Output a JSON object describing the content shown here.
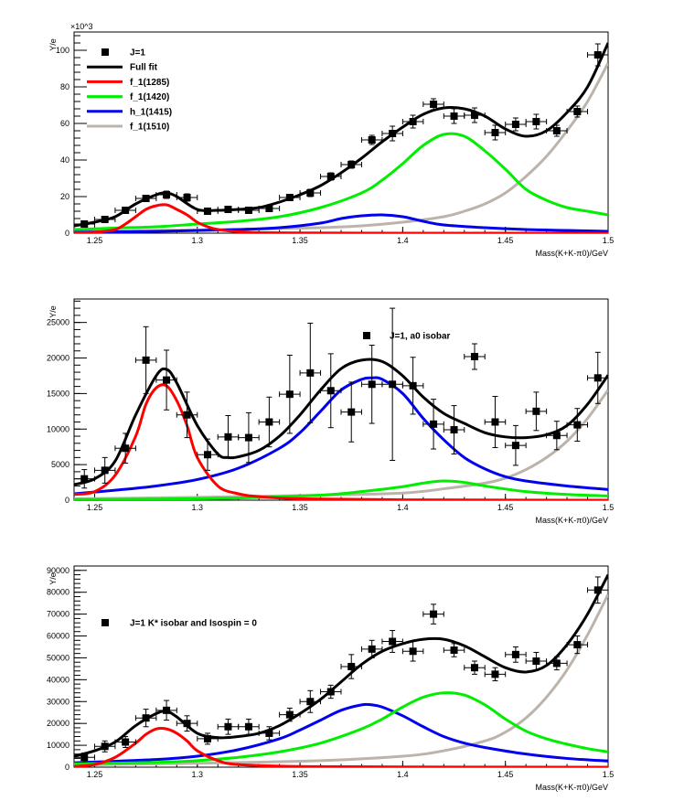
{
  "chart_data": [
    {
      "type": "scatter",
      "title": "",
      "xlabel": "Mass(K+K-π0)/GeV",
      "ylabel": "Y/e",
      "y_exponent_label": "×10^3",
      "xlim": [
        1.24,
        1.5
      ],
      "ylim": [
        0,
        110
      ],
      "x_ticks": [
        "1.25",
        "1.3",
        "1.35",
        "1.4",
        "1.45",
        "1.5"
      ],
      "y_ticks": [
        "0",
        "20",
        "40",
        "60",
        "80",
        "100"
      ],
      "legend_placement": "top-left",
      "legend": [
        {
          "label": "J=1",
          "kind": "marker",
          "color": "#000000"
        },
        {
          "label": "Full fit",
          "kind": "line",
          "color": "#000000"
        },
        {
          "label": "f_1(1285)",
          "kind": "line",
          "color": "#ff0000"
        },
        {
          "label": "f_1(1420)",
          "kind": "line",
          "color": "#00ee00"
        },
        {
          "label": "h_1(1415)",
          "kind": "line",
          "color": "#0000ee"
        },
        {
          "label": "f_1(1510)",
          "kind": "line",
          "color": "#bcb4ab"
        }
      ],
      "points": {
        "x": [
          1.245,
          1.255,
          1.265,
          1.275,
          1.285,
          1.295,
          1.305,
          1.315,
          1.325,
          1.335,
          1.345,
          1.355,
          1.365,
          1.375,
          1.385,
          1.395,
          1.405,
          1.415,
          1.425,
          1.435,
          1.445,
          1.455,
          1.465,
          1.475,
          1.485,
          1.495
        ],
        "y": [
          5,
          7.5,
          12.5,
          19,
          21,
          19.5,
          12,
          13,
          12.5,
          13.5,
          19.5,
          22,
          31,
          37.5,
          51,
          54.5,
          61,
          70.5,
          64,
          64.5,
          55,
          59.5,
          61,
          56,
          66.5,
          97.5
        ],
        "yerr": [
          1,
          1,
          1.5,
          1.5,
          2,
          2,
          1,
          1.5,
          1.5,
          1.5,
          1.5,
          2,
          2,
          2,
          2.5,
          4,
          3.5,
          3,
          4,
          4,
          4,
          3.5,
          4,
          3,
          3,
          6
        ]
      },
      "series": [
        {
          "name": "Full fit",
          "color": "#000000",
          "x": [
            1.24,
            1.25,
            1.26,
            1.27,
            1.28,
            1.285,
            1.29,
            1.3,
            1.31,
            1.32,
            1.33,
            1.34,
            1.35,
            1.36,
            1.37,
            1.38,
            1.39,
            1.4,
            1.41,
            1.42,
            1.43,
            1.44,
            1.45,
            1.46,
            1.47,
            1.48,
            1.49,
            1.5
          ],
          "y": [
            4,
            6,
            9,
            16,
            21,
            22,
            20,
            13,
            12.5,
            13,
            14,
            17,
            21,
            26,
            33,
            41,
            50,
            58,
            65,
            68.5,
            68,
            64,
            57,
            53,
            56,
            66,
            80,
            104
          ]
        },
        {
          "name": "f_1(1285)",
          "color": "#ff0000",
          "x": [
            1.24,
            1.25,
            1.26,
            1.265,
            1.27,
            1.275,
            1.28,
            1.285,
            1.29,
            1.295,
            1.3,
            1.305,
            1.31,
            1.32,
            1.33,
            1.35,
            1.4,
            1.5
          ],
          "y": [
            0.2,
            0.5,
            2,
            5,
            9,
            13,
            15,
            15.5,
            13,
            10,
            6,
            3.5,
            2,
            0.8,
            0.3,
            0.1,
            0,
            0
          ]
        },
        {
          "name": "f_1(1420)",
          "color": "#00ee00",
          "x": [
            1.24,
            1.26,
            1.28,
            1.3,
            1.32,
            1.34,
            1.36,
            1.38,
            1.39,
            1.4,
            1.41,
            1.42,
            1.43,
            1.44,
            1.45,
            1.46,
            1.47,
            1.48,
            1.49,
            1.5
          ],
          "y": [
            2,
            2.8,
            3.5,
            5,
            6.5,
            9,
            14,
            22,
            29,
            38,
            48,
            54,
            53,
            45,
            35,
            24,
            18,
            14,
            12,
            10
          ]
        },
        {
          "name": "h_1(1415)",
          "color": "#0000ee",
          "x": [
            1.24,
            1.28,
            1.32,
            1.34,
            1.36,
            1.37,
            1.38,
            1.39,
            1.4,
            1.41,
            1.42,
            1.44,
            1.46,
            1.48,
            1.5
          ],
          "y": [
            0.5,
            1,
            2,
            3,
            5.5,
            8,
            9.5,
            10,
            9,
            6.5,
            4.5,
            3,
            2,
            1.5,
            1
          ]
        },
        {
          "name": "f_1(1510)",
          "color": "#bcb4ab",
          "x": [
            1.24,
            1.28,
            1.32,
            1.36,
            1.38,
            1.4,
            1.42,
            1.43,
            1.44,
            1.45,
            1.46,
            1.47,
            1.48,
            1.49,
            1.5
          ],
          "y": [
            1,
            1.5,
            2,
            3,
            4,
            6,
            9,
            12,
            16,
            22,
            31,
            42,
            56,
            72,
            93
          ]
        }
      ]
    },
    {
      "type": "scatter",
      "title": "",
      "xlabel": "Mass(K+K-π0)/GeV",
      "ylabel": "Y/e",
      "xlim": [
        1.24,
        1.5
      ],
      "ylim": [
        0,
        28300
      ],
      "x_ticks": [
        "1.25",
        "1.3",
        "1.35",
        "1.4",
        "1.45",
        "1.5"
      ],
      "y_ticks": [
        "0",
        "5000",
        "10000",
        "15000",
        "20000",
        "25000"
      ],
      "legend_placement": "top-center",
      "legend": [
        {
          "label": "J=1, a0 isobar",
          "kind": "marker",
          "color": "#000000"
        }
      ],
      "points": {
        "x": [
          1.245,
          1.255,
          1.265,
          1.275,
          1.285,
          1.295,
          1.305,
          1.315,
          1.325,
          1.335,
          1.345,
          1.355,
          1.365,
          1.375,
          1.385,
          1.395,
          1.405,
          1.415,
          1.425,
          1.435,
          1.445,
          1.455,
          1.465,
          1.475,
          1.485,
          1.495
        ],
        "y": [
          3000,
          4200,
          7300,
          19700,
          16900,
          12000,
          6400,
          8900,
          8800,
          11000,
          14900,
          17900,
          15400,
          12400,
          16300,
          16300,
          16100,
          10700,
          9900,
          20200,
          11000,
          7700,
          12500,
          9100,
          10600,
          17200
        ],
        "yerr": [
          1300,
          1800,
          2100,
          4700,
          4200,
          3200,
          2200,
          3000,
          3500,
          3500,
          5500,
          7000,
          5200,
          4200,
          5500,
          10700,
          4000,
          3500,
          3400,
          1800,
          3600,
          2800,
          2700,
          2000,
          2300,
          3600
        ]
      },
      "series": [
        {
          "name": "Full fit",
          "color": "#000000",
          "x": [
            1.24,
            1.25,
            1.26,
            1.27,
            1.28,
            1.285,
            1.29,
            1.3,
            1.31,
            1.315,
            1.32,
            1.33,
            1.34,
            1.35,
            1.36,
            1.37,
            1.38,
            1.39,
            1.4,
            1.41,
            1.42,
            1.43,
            1.44,
            1.45,
            1.46,
            1.47,
            1.48,
            1.49,
            1.5
          ],
          "y": [
            2200,
            3000,
            5500,
            12000,
            17500,
            18400,
            16500,
            10500,
            6500,
            6000,
            6100,
            7000,
            9000,
            12000,
            15500,
            18500,
            19700,
            19500,
            17500,
            14500,
            12200,
            10800,
            9500,
            8900,
            8800,
            9200,
            10500,
            13500,
            17600
          ]
        },
        {
          "name": "f_1(1285)",
          "color": "#ff0000",
          "x": [
            1.24,
            1.25,
            1.26,
            1.27,
            1.275,
            1.28,
            1.285,
            1.29,
            1.295,
            1.3,
            1.31,
            1.32,
            1.33,
            1.35,
            1.4,
            1.5
          ],
          "y": [
            800,
            1200,
            3500,
            9000,
            13500,
            15800,
            16100,
            14000,
            10500,
            6000,
            2000,
            900,
            500,
            200,
            50,
            0
          ]
        },
        {
          "name": "f_1(1420)",
          "color": "#00ee00",
          "x": [
            1.24,
            1.28,
            1.32,
            1.36,
            1.38,
            1.4,
            1.41,
            1.42,
            1.43,
            1.44,
            1.46,
            1.48,
            1.5
          ],
          "y": [
            100,
            150,
            300,
            700,
            1200,
            1900,
            2400,
            2700,
            2500,
            2000,
            1200,
            800,
            600
          ]
        },
        {
          "name": "h_1(1415)",
          "color": "#0000ee",
          "x": [
            1.24,
            1.26,
            1.28,
            1.3,
            1.32,
            1.34,
            1.35,
            1.36,
            1.37,
            1.38,
            1.385,
            1.39,
            1.4,
            1.41,
            1.42,
            1.43,
            1.44,
            1.45,
            1.46,
            1.48,
            1.5
          ],
          "y": [
            900,
            1400,
            2000,
            2900,
            4500,
            7300,
            9500,
            12500,
            15500,
            17000,
            17200,
            17000,
            15000,
            11500,
            8500,
            6000,
            4400,
            3300,
            2700,
            2000,
            1500
          ]
        },
        {
          "name": "f_1(1510)",
          "color": "#bcb4ab",
          "x": [
            1.24,
            1.3,
            1.36,
            1.4,
            1.42,
            1.44,
            1.45,
            1.46,
            1.47,
            1.48,
            1.49,
            1.5
          ],
          "y": [
            200,
            400,
            700,
            1000,
            1600,
            2400,
            3100,
            4300,
            6000,
            8300,
            11500,
            15500
          ]
        }
      ]
    },
    {
      "type": "scatter",
      "title": "",
      "xlabel": "Mass(K+K-π0)/GeV",
      "ylabel": "Y/e",
      "xlim": [
        1.24,
        1.5
      ],
      "ylim": [
        0,
        92000
      ],
      "x_ticks": [
        "1.25",
        "1.3",
        "1.35",
        "1.4",
        "1.45",
        "1.5"
      ],
      "y_ticks": [
        "0",
        "10000",
        "20000",
        "30000",
        "40000",
        "50000",
        "60000",
        "70000",
        "80000",
        "90000"
      ],
      "legend_placement": "top-left",
      "legend": [
        {
          "label": "J=1 K* isobar and Isospin = 0",
          "kind": "marker",
          "color": "#000000"
        }
      ],
      "points": {
        "x": [
          1.245,
          1.255,
          1.265,
          1.275,
          1.285,
          1.295,
          1.305,
          1.315,
          1.325,
          1.335,
          1.345,
          1.355,
          1.365,
          1.375,
          1.385,
          1.395,
          1.405,
          1.415,
          1.425,
          1.435,
          1.445,
          1.455,
          1.465,
          1.475,
          1.485,
          1.495
        ],
        "y": [
          4500,
          9500,
          11500,
          22500,
          26000,
          20000,
          13000,
          18500,
          18500,
          15500,
          24000,
          30000,
          34500,
          46000,
          54000,
          57500,
          53000,
          70000,
          53500,
          45500,
          42500,
          51500,
          48500,
          47500,
          56000,
          81000
        ],
        "yerr": [
          2000,
          2500,
          2500,
          4000,
          4500,
          3500,
          2500,
          3500,
          3500,
          3000,
          3000,
          5000,
          3000,
          5500,
          4000,
          5000,
          4500,
          4500,
          3000,
          3000,
          3000,
          3500,
          4000,
          3000,
          4000,
          6000
        ]
      },
      "series": [
        {
          "name": "Full fit",
          "color": "#000000",
          "x": [
            1.24,
            1.25,
            1.26,
            1.27,
            1.28,
            1.285,
            1.29,
            1.3,
            1.31,
            1.32,
            1.33,
            1.34,
            1.35,
            1.36,
            1.37,
            1.38,
            1.39,
            1.4,
            1.41,
            1.42,
            1.43,
            1.44,
            1.45,
            1.46,
            1.47,
            1.48,
            1.49,
            1.5
          ],
          "y": [
            5000,
            7500,
            11500,
            19000,
            24500,
            25500,
            23000,
            15500,
            13500,
            14000,
            15500,
            19000,
            24500,
            31000,
            39000,
            47000,
            53000,
            56500,
            58500,
            58500,
            55500,
            50500,
            45500,
            43500,
            46500,
            56000,
            70000,
            88000
          ]
        },
        {
          "name": "f_1(1285)",
          "color": "#ff0000",
          "x": [
            1.24,
            1.25,
            1.26,
            1.27,
            1.275,
            1.28,
            1.285,
            1.29,
            1.295,
            1.3,
            1.31,
            1.32,
            1.35,
            1.4,
            1.5
          ],
          "y": [
            300,
            1200,
            4500,
            11000,
            15000,
            17500,
            17500,
            15500,
            12000,
            7500,
            3000,
            1200,
            300,
            100,
            0
          ]
        },
        {
          "name": "f_1(1420)",
          "color": "#00ee00",
          "x": [
            1.24,
            1.28,
            1.3,
            1.32,
            1.34,
            1.36,
            1.38,
            1.39,
            1.4,
            1.41,
            1.42,
            1.43,
            1.44,
            1.45,
            1.46,
            1.47,
            1.48,
            1.49,
            1.5
          ],
          "y": [
            1500,
            2200,
            3000,
            4500,
            7000,
            11000,
            17500,
            22000,
            27500,
            32000,
            34000,
            33000,
            28500,
            22000,
            16500,
            13000,
            10500,
            8500,
            7000
          ]
        },
        {
          "name": "h_1(1415)",
          "color": "#0000ee",
          "x": [
            1.24,
            1.28,
            1.3,
            1.32,
            1.34,
            1.35,
            1.36,
            1.37,
            1.38,
            1.385,
            1.39,
            1.4,
            1.41,
            1.42,
            1.43,
            1.44,
            1.46,
            1.48,
            1.5
          ],
          "y": [
            2000,
            3500,
            5000,
            8000,
            13000,
            17000,
            21500,
            26000,
            28500,
            28500,
            27500,
            23500,
            18500,
            14000,
            11000,
            9000,
            6000,
            4000,
            2800
          ]
        },
        {
          "name": "f_1(1510)",
          "color": "#bcb4ab",
          "x": [
            1.24,
            1.3,
            1.36,
            1.4,
            1.42,
            1.44,
            1.45,
            1.46,
            1.47,
            1.48,
            1.49,
            1.5
          ],
          "y": [
            1000,
            1800,
            3000,
            5000,
            7500,
            12000,
            16000,
            22500,
            32000,
            44500,
            60500,
            79000
          ]
        }
      ]
    }
  ]
}
